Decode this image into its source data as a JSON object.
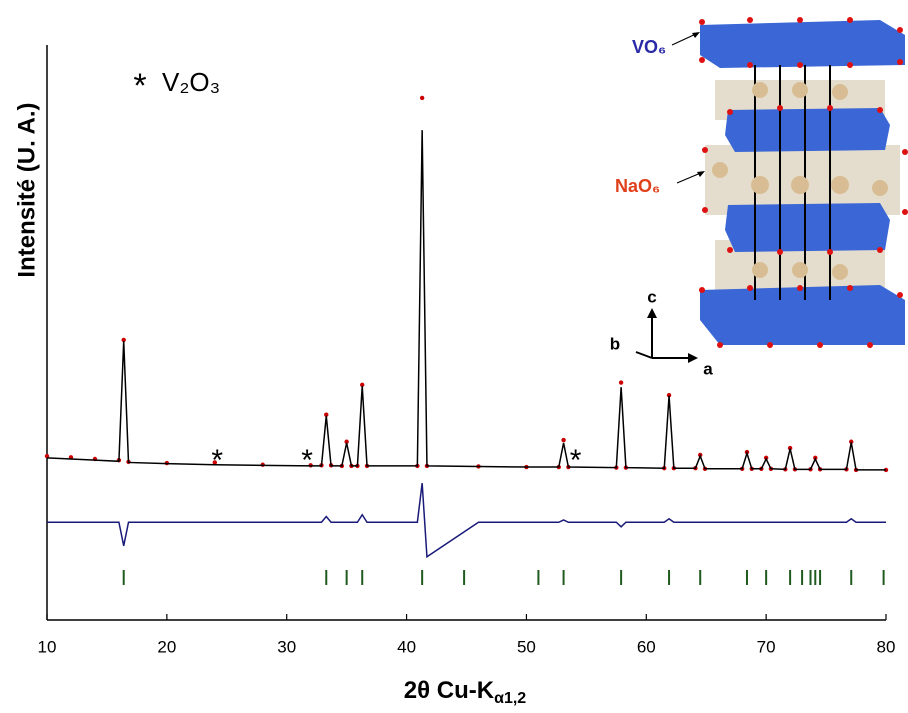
{
  "chart_data": {
    "type": "line",
    "xlabel": {
      "text": "2θ Cu-K",
      "subscript": "α1,2"
    },
    "ylabel": "Intensité (U. A.)",
    "xlim": [
      10,
      80
    ],
    "xticks": [
      10,
      20,
      30,
      40,
      50,
      60,
      70,
      80
    ],
    "ylim": [
      0,
      100
    ],
    "x": [
      10,
      12,
      14,
      16,
      16.4,
      16.8,
      20,
      24,
      28,
      32,
      32.9,
      33.3,
      33.7,
      34.6,
      35,
      35.4,
      35.9,
      36.3,
      36.7,
      40.9,
      41.3,
      41.7,
      46,
      50,
      52.7,
      53.1,
      53.5,
      57.5,
      57.9,
      58.3,
      61.5,
      61.9,
      62.3,
      64.1,
      64.5,
      64.9,
      68,
      68.4,
      68.8,
      69.6,
      70,
      70.4,
      71.6,
      72,
      72.4,
      73.7,
      74.1,
      74.5,
      76.7,
      77.1,
      77.5,
      80
    ],
    "series": [
      {
        "style": "markers",
        "color": "#cc0000",
        "values": [
          28.5,
          28.3,
          28.0,
          27.8,
          48.7,
          27.5,
          27.3,
          27.4,
          27.0,
          26.9,
          26.9,
          35.7,
          26.9,
          26.8,
          31.0,
          26.8,
          26.8,
          40.9,
          26.8,
          26.8,
          90.8,
          26.8,
          26.7,
          26.6,
          26.6,
          31.3,
          26.6,
          26.5,
          41.3,
          26.5,
          26.4,
          39.1,
          26.4,
          26.4,
          28.7,
          26.3,
          26.3,
          29.2,
          26.3,
          26.3,
          28.2,
          26.3,
          26.2,
          29.9,
          26.2,
          26.2,
          28.2,
          26.2,
          26.2,
          31.0,
          26.1,
          26.1
        ]
      },
      {
        "style": "line",
        "color": "#000000",
        "values": [
          28.2,
          28.0,
          27.8,
          27.6,
          48.5,
          27.4,
          27.2,
          27.0,
          26.9,
          26.8,
          26.8,
          35.5,
          26.8,
          26.8,
          30.8,
          26.8,
          26.8,
          40.7,
          26.8,
          26.8,
          85.2,
          26.8,
          26.7,
          26.6,
          26.6,
          30.8,
          26.6,
          26.5,
          40.5,
          26.5,
          26.4,
          39.0,
          26.4,
          26.4,
          28.5,
          26.3,
          26.3,
          29.0,
          26.3,
          26.3,
          28.0,
          26.3,
          26.2,
          29.8,
          26.2,
          26.2,
          28.0,
          26.2,
          26.2,
          30.9,
          26.1,
          26.1
        ]
      },
      {
        "style": "line",
        "color": "#1a1a7a",
        "values": [
          17,
          17,
          17,
          17,
          12.9,
          17,
          17,
          17,
          17,
          17,
          17,
          18.0,
          17,
          17,
          17,
          17,
          17,
          18.3,
          17,
          17,
          23.8,
          11.0,
          17,
          17,
          17,
          17.4,
          17,
          17,
          16.2,
          17,
          17,
          17.6,
          17,
          17,
          17,
          17,
          17,
          17,
          17,
          17,
          17,
          17,
          17,
          17,
          17,
          17,
          17,
          17,
          17,
          17.6,
          17,
          17
        ]
      }
    ],
    "bragg": {
      "color": "#1f5a1f",
      "positions": [
        16.4,
        33.3,
        35.0,
        36.3,
        41.3,
        44.8,
        51.0,
        53.1,
        57.9,
        61.9,
        64.5,
        68.4,
        70.0,
        72.0,
        73.0,
        73.7,
        74.1,
        74.5,
        77.1,
        79.8
      ]
    },
    "annotations": [
      {
        "text": "*",
        "x": 24.2
      },
      {
        "text": "*",
        "x": 31.7
      },
      {
        "text": "*",
        "x": 54.1
      }
    ],
    "legend": {
      "marker": "*",
      "label": "V₂O₃"
    },
    "inset": {
      "vo6": "VO₆",
      "nao6": "NaO₆",
      "axis_a": "a",
      "axis_b": "b",
      "axis_c": "c"
    }
  }
}
